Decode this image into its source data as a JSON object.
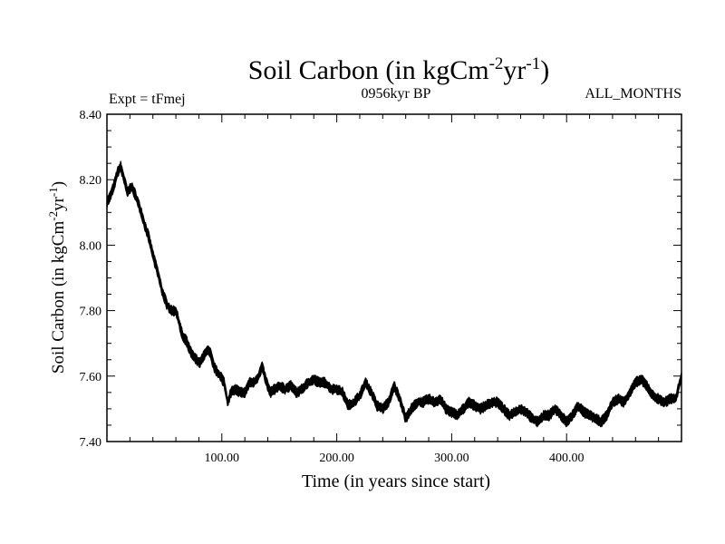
{
  "chart_data": {
    "type": "line",
    "title": {
      "prefix": "Soil Carbon (in kgCm",
      "sup1": "-2",
      "mid": "yr",
      "sup2": "-1",
      "suffix": ")"
    },
    "left_label": "Expt = tFmej",
    "center_label": "0956kyr BP",
    "right_label": "ALL_MONTHS",
    "xlabel": "Time (in years since start)",
    "ylabel": {
      "prefix": "Soil Carbon (in kgCm",
      "sup1": "-2",
      "mid": "yr",
      "sup2": "-1",
      "suffix": ")"
    },
    "xlim": [
      0,
      500
    ],
    "ylim": [
      7.4,
      8.4
    ],
    "x_ticks": [
      100,
      200,
      300,
      400
    ],
    "x_tick_labels": [
      "100.00",
      "200.00",
      "300.00",
      "400.00"
    ],
    "y_ticks": [
      7.4,
      7.6,
      7.8,
      8.0,
      8.2,
      8.4
    ],
    "y_tick_labels": [
      "7.40",
      "7.60",
      "7.80",
      "8.00",
      "8.20",
      "8.40"
    ],
    "band_halfwidth": 0.012,
    "series": [
      {
        "name": "Soil Carbon",
        "color": "#000000",
        "x": [
          0,
          3,
          6,
          9,
          12,
          15,
          18,
          21,
          24,
          27,
          30,
          33,
          36,
          40,
          44,
          48,
          52,
          56,
          60,
          63,
          66,
          69,
          72,
          75,
          78,
          81,
          84,
          87,
          90,
          93,
          96,
          99,
          102,
          105,
          108,
          112,
          116,
          120,
          124,
          128,
          132,
          135,
          138,
          142,
          146,
          150,
          155,
          160,
          165,
          170,
          175,
          180,
          185,
          190,
          195,
          200,
          205,
          210,
          215,
          220,
          225,
          230,
          235,
          240,
          245,
          250,
          255,
          260,
          265,
          270,
          275,
          280,
          285,
          290,
          295,
          300,
          305,
          310,
          315,
          320,
          325,
          330,
          335,
          340,
          345,
          350,
          355,
          360,
          365,
          370,
          375,
          380,
          385,
          390,
          395,
          400,
          405,
          410,
          415,
          420,
          425,
          430,
          435,
          440,
          445,
          450,
          455,
          460,
          465,
          470,
          475,
          480,
          485,
          490,
          495,
          500
        ],
        "y": [
          8.13,
          8.15,
          8.18,
          8.22,
          8.24,
          8.2,
          8.16,
          8.18,
          8.16,
          8.13,
          8.1,
          8.06,
          8.03,
          7.97,
          7.92,
          7.86,
          7.82,
          7.8,
          7.8,
          7.76,
          7.72,
          7.71,
          7.68,
          7.66,
          7.65,
          7.64,
          7.66,
          7.68,
          7.67,
          7.63,
          7.61,
          7.6,
          7.58,
          7.52,
          7.55,
          7.56,
          7.55,
          7.55,
          7.58,
          7.58,
          7.6,
          7.63,
          7.59,
          7.55,
          7.56,
          7.57,
          7.56,
          7.57,
          7.55,
          7.56,
          7.58,
          7.59,
          7.58,
          7.58,
          7.56,
          7.56,
          7.55,
          7.51,
          7.52,
          7.54,
          7.58,
          7.55,
          7.51,
          7.5,
          7.52,
          7.57,
          7.53,
          7.47,
          7.5,
          7.52,
          7.52,
          7.53,
          7.52,
          7.53,
          7.5,
          7.49,
          7.48,
          7.5,
          7.52,
          7.51,
          7.5,
          7.51,
          7.52,
          7.52,
          7.5,
          7.48,
          7.49,
          7.5,
          7.49,
          7.47,
          7.46,
          7.48,
          7.48,
          7.5,
          7.48,
          7.46,
          7.48,
          7.51,
          7.49,
          7.48,
          7.47,
          7.46,
          7.48,
          7.52,
          7.53,
          7.52,
          7.55,
          7.58,
          7.59,
          7.57,
          7.54,
          7.53,
          7.52,
          7.53,
          7.53,
          7.6
        ]
      }
    ]
  }
}
